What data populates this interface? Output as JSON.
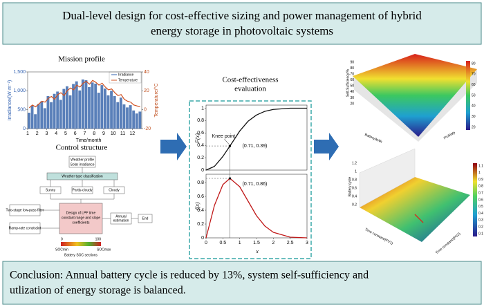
{
  "header": {
    "title_lines": [
      "Dual-level design for cost-effective sizing and power management of hybrid",
      "energy storage in photovoltaic systems"
    ]
  },
  "mission_profile": {
    "title": "Mission profile",
    "y_label": "Irradiance/(W·m⁻²)",
    "y2_label": "Temperature/°C",
    "x_label": "Time/month",
    "legend": [
      "Irradiance",
      "Temperature"
    ],
    "ylim": [
      0,
      1500
    ],
    "yticks": [
      0,
      500,
      {
        "value": 1000,
        "label": "1,000"
      },
      {
        "value": 1500,
        "label": "1,500"
      }
    ],
    "y2lim": [
      -20,
      40
    ],
    "y2ticks": [
      -20,
      0,
      20,
      40
    ],
    "xlim": [
      1,
      13
    ],
    "xticks": [
      1,
      2,
      3,
      4,
      5,
      6,
      7,
      8,
      9,
      10,
      11,
      12
    ],
    "irradiance": [
      420,
      610,
      380,
      650,
      720,
      540,
      860,
      700,
      920,
      980,
      760,
      1050,
      1120,
      880,
      1180,
      1250,
      1010,
      1300,
      1280,
      1100,
      1220,
      1190,
      950,
      1150,
      1060,
      880,
      1000,
      860,
      700,
      820,
      640,
      560,
      620,
      480,
      400,
      450
    ],
    "temperature": [
      2,
      5,
      3,
      6,
      9,
      8,
      12,
      14,
      11,
      16,
      18,
      15,
      20,
      23,
      21,
      26,
      24,
      28,
      30,
      27,
      31,
      29,
      26,
      28,
      24,
      21,
      22,
      18,
      15,
      16,
      11,
      9,
      8,
      5,
      4,
      3
    ]
  },
  "control_structure": {
    "title": "Control structure",
    "weather": [
      "Weather profile",
      "Solar irradiance"
    ],
    "classification": "Weather type classification",
    "types": [
      "Sunny",
      "Partly-cloudy",
      "Cloudy"
    ],
    "filter": "Two-stage low-pass filter",
    "ramp": "Ramp-rate constraint",
    "design": [
      "Design of LPF time",
      "constant range and slope",
      "coefficients"
    ],
    "annual": [
      "Annual",
      "estimation"
    ],
    "end": "End",
    "soc_ticks": [
      "0",
      "100"
    ],
    "soc_bounds": [
      "SOCmin",
      "SOCmax"
    ],
    "soc_caption": "Battery SOC sections"
  },
  "cost_effectiveness": {
    "title_lines": [
      "Cost-effectiveness",
      "evaluation"
    ],
    "x_label": "x",
    "xlim": [
      0,
      3
    ],
    "xticks": [
      0,
      0.5,
      1,
      1.5,
      2,
      2.5,
      3
    ],
    "cdf": {
      "y_label": "F(x)",
      "ylim": [
        0,
        1.05
      ],
      "yticks": [
        0,
        0.2,
        0.4,
        0.6,
        0.8,
        1
      ],
      "values": [
        0,
        0.06,
        0.22,
        0.39,
        0.63,
        0.79,
        0.89,
        0.95,
        0.98,
        1,
        1
      ],
      "knee_label": "Knee point",
      "point_label": "(0.71, 0.39)",
      "point": [
        0.71,
        0.39
      ]
    },
    "pdf": {
      "y_label": "f(x)",
      "ylim": [
        0,
        0.92
      ],
      "yticks": [
        0,
        0.2,
        0.4,
        0.6,
        0.8
      ],
      "values": [
        0,
        0.47,
        0.77,
        0.86,
        0.74,
        0.53,
        0.32,
        0.17,
        0.08,
        0.01,
        0
      ],
      "point_label": "(0.71, 0.86)",
      "point": [
        0.71,
        0.86
      ]
    },
    "x": [
      0,
      0.25,
      0.5,
      0.71,
      1,
      1.25,
      1.5,
      1.75,
      2,
      2.5,
      3
    ]
  },
  "surface_top": {
    "z_label": "Self-Sufficiency/%",
    "x_label": "Battery/kWh",
    "y_label": "PV/kWp",
    "zticks": [
      20,
      30,
      40,
      50,
      60,
      70,
      80,
      90
    ],
    "colorbar_ticks": [
      20,
      30,
      40,
      50,
      60,
      70,
      80
    ]
  },
  "surface_bottom": {
    "z_label": "Battery cycle",
    "x_label": "Time constant/(PV1)",
    "y_label": "Time constant/(PV2)",
    "zticks": [
      0.2,
      0.4,
      0.6,
      0.8,
      1,
      1.2
    ],
    "colorbar_ticks": [
      0.1,
      0.2,
      0.3,
      0.4,
      0.5,
      0.6,
      0.7,
      0.8,
      0.9,
      1,
      1.1
    ]
  },
  "conclusion": {
    "lines": [
      "Conclusion: Annual battery cycle is reduced by 13%, system self-sufficiency and",
      "utlization of energy storage is balanced."
    ]
  }
}
